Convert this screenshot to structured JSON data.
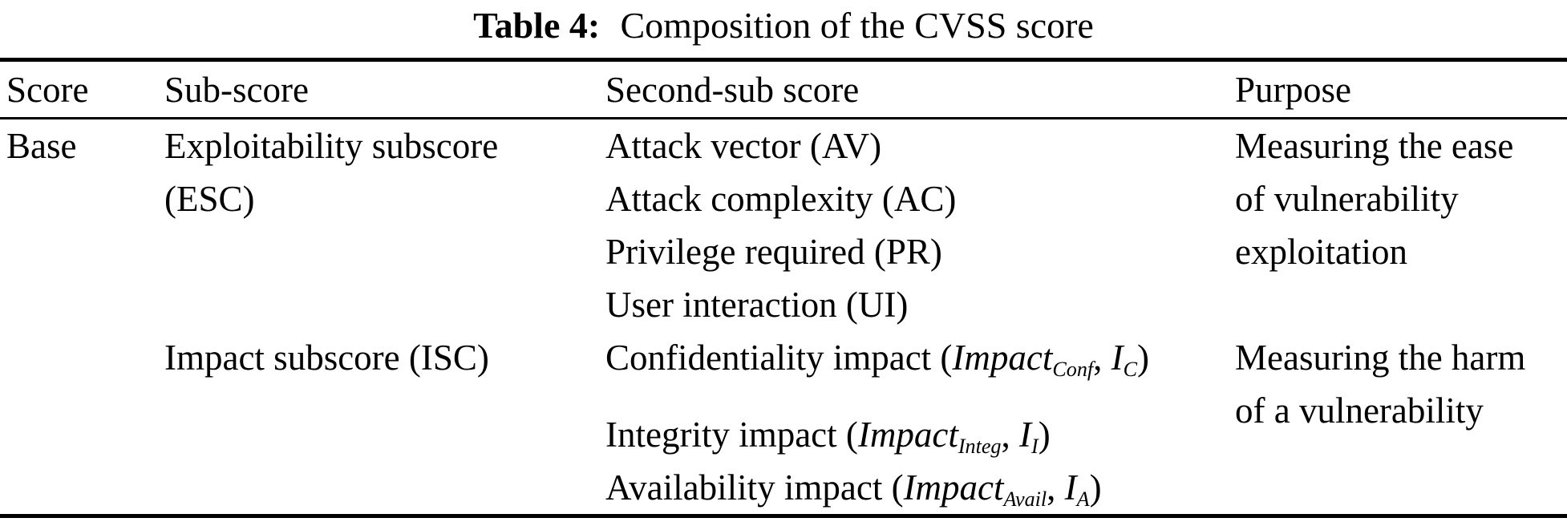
{
  "colors": {
    "text": "#000000",
    "background": "#ffffff",
    "rule": "#000000"
  },
  "caption": {
    "label": "Table 4:",
    "text": "Composition of the CVSS score"
  },
  "table": {
    "headers": [
      "Score",
      "Sub-score",
      "Second-sub score",
      "Purpose"
    ],
    "row_base": {
      "score": "Base",
      "sub_score_lines": [
        "Exploitability subscore",
        "(ESC)"
      ],
      "second_sub_lines": [
        "Attack vector (AV)",
        "Attack complexity (AC)",
        "Privilege required (PR)",
        "User interaction (UI)"
      ],
      "purpose_lines": [
        "Measuring the ease",
        "of vulnerability",
        "exploitation"
      ]
    },
    "row_impact": {
      "sub_score": "Impact subscore (ISC)",
      "confidentiality": {
        "label": "Confidentiality impact (",
        "var": "Impact",
        "var_sub": "Conf",
        "comma": ", ",
        "short": "I",
        "short_sub": "C",
        "close": ")"
      },
      "integrity": {
        "label": "Integrity impact (",
        "var": "Impact",
        "var_sub": "Integ",
        "comma": ", ",
        "short": "I",
        "short_sub": "I",
        "close": ")"
      },
      "availability": {
        "label": "Availability impact (",
        "var": "Impact",
        "var_sub": "Avail",
        "comma": ", ",
        "short": "I",
        "short_sub": "A",
        "close": ")"
      },
      "purpose_lines": [
        "Measuring the harm",
        "of a vulnerability"
      ]
    }
  }
}
